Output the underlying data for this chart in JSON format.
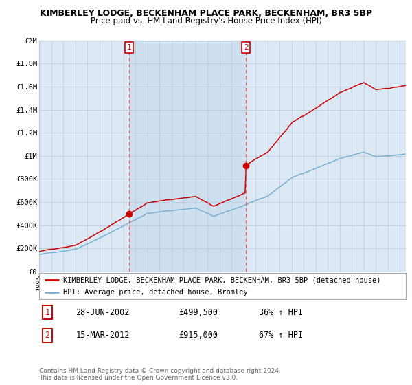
{
  "title1": "KIMBERLEY LODGE, BECKENHAM PLACE PARK, BECKENHAM, BR3 5BP",
  "title2": "Price paid vs. HM Land Registry's House Price Index (HPI)",
  "ylim": [
    0,
    2000000
  ],
  "yticks": [
    0,
    200000,
    400000,
    600000,
    800000,
    1000000,
    1200000,
    1400000,
    1600000,
    1800000,
    2000000
  ],
  "ytick_labels": [
    "£0",
    "£200K",
    "£400K",
    "£600K",
    "£800K",
    "£1M",
    "£1.2M",
    "£1.4M",
    "£1.6M",
    "£1.8M",
    "£2M"
  ],
  "red_color": "#cc0000",
  "blue_color": "#7ab0d4",
  "bg_color": "#dce9f5",
  "grid_color": "#b8c8d8",
  "vline_color": "#ff5555",
  "marker1_year": 2002.49,
  "marker1_value": 499500,
  "marker1_label": "1",
  "marker2_year": 2012.21,
  "marker2_value": 915000,
  "marker2_label": "2",
  "sale1_date": "28-JUN-2002",
  "sale1_price": "£499,500",
  "sale1_hpi": "36% ↑ HPI",
  "sale2_date": "15-MAR-2012",
  "sale2_price": "£915,000",
  "sale2_hpi": "67% ↑ HPI",
  "legend_red": "KIMBERLEY LODGE, BECKENHAM PLACE PARK, BECKENHAM, BR3 5BP (detached house)",
  "legend_blue": "HPI: Average price, detached house, Bromley",
  "footnote1": "Contains HM Land Registry data © Crown copyright and database right 2024.",
  "footnote2": "This data is licensed under the Open Government Licence v3.0.",
  "title1_fontsize": 9.0,
  "title2_fontsize": 8.5,
  "tick_fontsize": 7.5,
  "legend_fontsize": 7.5,
  "table_fontsize": 8.5,
  "footnote_fontsize": 6.5
}
